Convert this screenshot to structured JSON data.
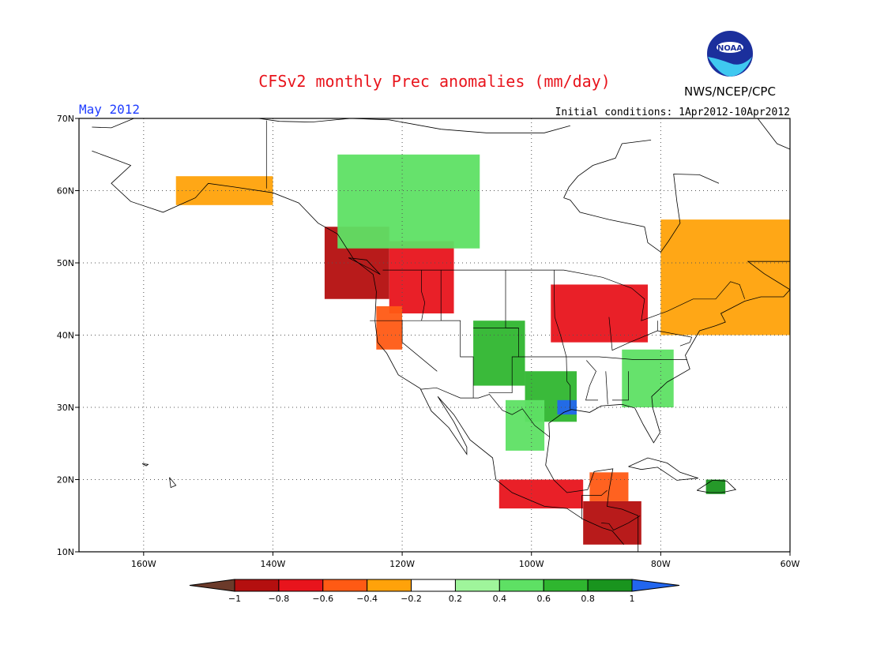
{
  "header": {
    "title": "CFSv2 monthly Prec anomalies (mm/day)",
    "agency": "NWS/NCEP/CPC",
    "logo_text": "NOAA",
    "valid_month": "May 2012",
    "initial_conditions": "Initial conditions: 1Apr2012-10Apr2012"
  },
  "map": {
    "lon_range": [
      -170,
      -60
    ],
    "lat_range": [
      10,
      70
    ],
    "x_ticks": [
      "160W",
      "140W",
      "120W",
      "100W",
      "80W",
      "60W"
    ],
    "y_ticks": [
      "70N",
      "60N",
      "50N",
      "40N",
      "30N",
      "20N",
      "10N"
    ],
    "grid": true
  },
  "colorbar": {
    "labels": [
      "-1",
      "-0.8",
      "-0.6",
      "-0.4",
      "-0.2",
      "0.2",
      "0.4",
      "0.6",
      "0.8",
      "1"
    ],
    "colors": [
      "#6b3a2a",
      "#b40f0f",
      "#e8141c",
      "#ff5a14",
      "#ffa20a",
      "#ffffff",
      "#9ff59b",
      "#5ee064",
      "#2fb62f",
      "#19941e",
      "#2266ee"
    ]
  },
  "chart_data": {
    "type": "heatmap",
    "title": "CFSv2 monthly Prec anomalies (mm/day)",
    "units": "mm/day",
    "levels": [
      -1,
      -0.8,
      -0.6,
      -0.4,
      -0.2,
      0.2,
      0.4,
      0.6,
      0.8,
      1
    ],
    "regions": [
      {
        "region": "Pacific Northwest coast (Vancouver Island)",
        "lon": [
          -132,
          -122
        ],
        "lat": [
          45,
          55
        ],
        "value": -1.0
      },
      {
        "region": "Pacific Northwest interior",
        "lon": [
          -122,
          -112
        ],
        "lat": [
          43,
          53
        ],
        "value": -0.7
      },
      {
        "region": "Northern California coast",
        "lon": [
          -124,
          -120
        ],
        "lat": [
          38,
          44
        ],
        "value": -0.5
      },
      {
        "region": "Gulf of Alaska coast",
        "lon": [
          -155,
          -140
        ],
        "lat": [
          58,
          62
        ],
        "value": -0.3
      },
      {
        "region": "Upper Midwest / Great Lakes",
        "lon": [
          -97,
          -82
        ],
        "lat": [
          39,
          47
        ],
        "value": -0.7
      },
      {
        "region": "Northeast US / Atlantic Canada",
        "lon": [
          -80,
          -60
        ],
        "lat": [
          40,
          56
        ],
        "value": -0.3
      },
      {
        "region": "Texas",
        "lon": [
          -101,
          -93
        ],
        "lat": [
          28,
          35
        ],
        "value": 0.7
      },
      {
        "region": "East Texas / Louisiana",
        "lon": [
          -96,
          -93
        ],
        "lat": [
          29,
          31
        ],
        "value": 1.0
      },
      {
        "region": "Colorado / New Mexico",
        "lon": [
          -109,
          -101
        ],
        "lat": [
          33,
          42
        ],
        "value": 0.6
      },
      {
        "region": "Northern Mexico",
        "lon": [
          -104,
          -98
        ],
        "lat": [
          24,
          31
        ],
        "value": 0.5
      },
      {
        "region": "Southeast US (Carolinas)",
        "lon": [
          -86,
          -78
        ],
        "lat": [
          30,
          38
        ],
        "value": 0.4
      },
      {
        "region": "Western Canada (Yukon/NWT)",
        "lon": [
          -130,
          -108
        ],
        "lat": [
          52,
          65
        ],
        "value": 0.4
      },
      {
        "region": "Southern Mexico Pacific coast",
        "lon": [
          -105,
          -92
        ],
        "lat": [
          16,
          20
        ],
        "value": -0.8
      },
      {
        "region": "Central America",
        "lon": [
          -92,
          -83
        ],
        "lat": [
          11,
          17
        ],
        "value": -1.0
      },
      {
        "region": "Yucatan",
        "lon": [
          -91,
          -85
        ],
        "lat": [
          17,
          21
        ],
        "value": -0.5
      },
      {
        "region": "Hispaniola",
        "lon": [
          -73,
          -70
        ],
        "lat": [
          18,
          20
        ],
        "value": 0.9
      }
    ]
  }
}
